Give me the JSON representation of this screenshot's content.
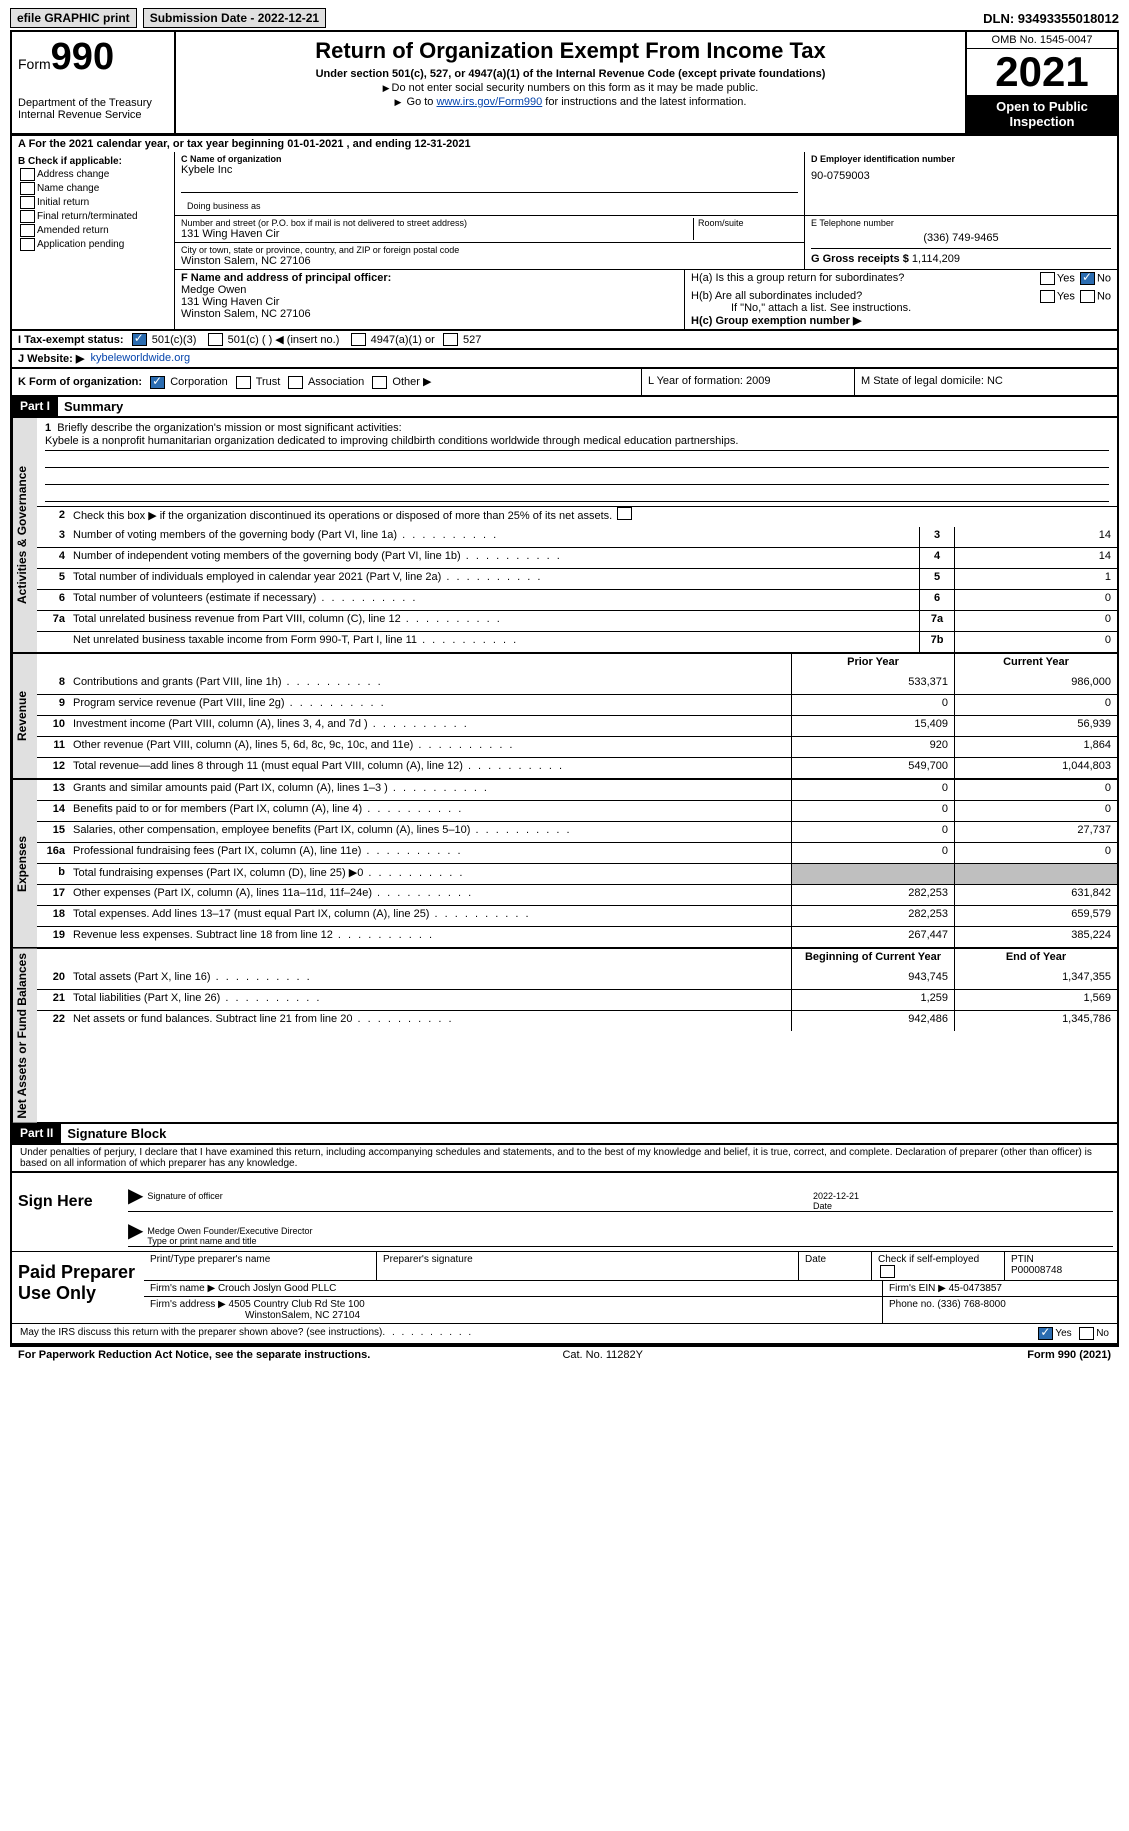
{
  "topbar": {
    "efile": "efile GRAPHIC print",
    "submission": "Submission Date - 2022-12-21",
    "dln": "DLN: 93493355018012"
  },
  "header": {
    "form_label": "Form",
    "form_num": "990",
    "title": "Return of Organization Exempt From Income Tax",
    "subtitle": "Under section 501(c), 527, or 4947(a)(1) of the Internal Revenue Code (except private foundations)",
    "note1": "Do not enter social security numbers on this form as it may be made public.",
    "note2_pre": "Go to ",
    "note2_link": "www.irs.gov/Form990",
    "note2_post": " for instructions and the latest information.",
    "dept": "Department of the Treasury",
    "irs": "Internal Revenue Service",
    "omb": "OMB No. 1545-0047",
    "year": "2021",
    "open": "Open to Public Inspection"
  },
  "line_a": "A For the 2021 calendar year, or tax year beginning 01-01-2021    , and ending 12-31-2021",
  "section_b": {
    "label": "B Check if applicable:",
    "opts": [
      "Address change",
      "Name change",
      "Initial return",
      "Final return/terminated",
      "Amended return",
      "Application pending"
    ],
    "c_label": "C Name of organization",
    "org_name": "Kybele Inc",
    "dba_label": "Doing business as",
    "street_label": "Number and street (or P.O. box if mail is not delivered to street address)",
    "street": "131 Wing Haven Cir",
    "room_label": "Room/suite",
    "city_label": "City or town, state or province, country, and ZIP or foreign postal code",
    "city": "Winston Salem, NC  27106",
    "d_label": "D Employer identification number",
    "ein": "90-0759003",
    "e_label": "E Telephone number",
    "phone": "(336) 749-9465",
    "g_label": "G Gross receipts $",
    "gross": "1,114,209",
    "f_label": "F  Name and address of principal officer:",
    "officer_name": "Medge Owen",
    "officer_addr1": "131 Wing Haven Cir",
    "officer_addr2": "Winston Salem, NC  27106",
    "h_a": "H(a)  Is this a group return for subordinates?",
    "h_b": "H(b)  Are all subordinates included?",
    "h_b_note": "If \"No,\" attach a list. See instructions.",
    "h_c": "H(c)  Group exemption number ▶",
    "yes": "Yes",
    "no": "No"
  },
  "tax_exempt": {
    "label": "I   Tax-exempt status:",
    "opt1": "501(c)(3)",
    "opt2": "501(c) (  ) ◀ (insert no.)",
    "opt3": "4947(a)(1) or",
    "opt4": "527"
  },
  "website": {
    "label": "J  Website: ▶",
    "url": "kybeleworldwide.org"
  },
  "k_row": {
    "label": "K Form of organization:",
    "corp": "Corporation",
    "trust": "Trust",
    "assoc": "Association",
    "other": "Other ▶",
    "l": "L Year of formation: 2009",
    "m": "M State of legal domicile: NC"
  },
  "part1": {
    "header": "Part I",
    "title": "Summary",
    "vert1": "Activities & Governance",
    "vert2": "Revenue",
    "vert3": "Expenses",
    "vert4": "Net Assets or Fund Balances",
    "line1_label": "Briefly describe the organization's mission or most significant activities:",
    "mission": "Kybele is a nonprofit humanitarian organization dedicated to improving childbirth conditions worldwide through medical education partnerships.",
    "line2": "Check this box ▶      if the organization discontinued its operations or disposed of more than 25% of its net assets.",
    "lines_gov": [
      {
        "n": "3",
        "t": "Number of voting members of the governing body (Part VI, line 1a)",
        "b": "3",
        "v": "14"
      },
      {
        "n": "4",
        "t": "Number of independent voting members of the governing body (Part VI, line 1b)",
        "b": "4",
        "v": "14"
      },
      {
        "n": "5",
        "t": "Total number of individuals employed in calendar year 2021 (Part V, line 2a)",
        "b": "5",
        "v": "1"
      },
      {
        "n": "6",
        "t": "Total number of volunteers (estimate if necessary)",
        "b": "6",
        "v": "0"
      },
      {
        "n": "7a",
        "t": "Total unrelated business revenue from Part VIII, column (C), line 12",
        "b": "7a",
        "v": "0"
      },
      {
        "n": "",
        "t": "Net unrelated business taxable income from Form 990-T, Part I, line 11",
        "b": "7b",
        "v": "0"
      }
    ],
    "col_prior": "Prior Year",
    "col_current": "Current Year",
    "lines_rev": [
      {
        "n": "8",
        "t": "Contributions and grants (Part VIII, line 1h)",
        "p": "533,371",
        "c": "986,000"
      },
      {
        "n": "9",
        "t": "Program service revenue (Part VIII, line 2g)",
        "p": "0",
        "c": "0"
      },
      {
        "n": "10",
        "t": "Investment income (Part VIII, column (A), lines 3, 4, and 7d )",
        "p": "15,409",
        "c": "56,939"
      },
      {
        "n": "11",
        "t": "Other revenue (Part VIII, column (A), lines 5, 6d, 8c, 9c, 10c, and 11e)",
        "p": "920",
        "c": "1,864"
      },
      {
        "n": "12",
        "t": "Total revenue—add lines 8 through 11 (must equal Part VIII, column (A), line 12)",
        "p": "549,700",
        "c": "1,044,803"
      }
    ],
    "lines_exp": [
      {
        "n": "13",
        "t": "Grants and similar amounts paid (Part IX, column (A), lines 1–3 )",
        "p": "0",
        "c": "0"
      },
      {
        "n": "14",
        "t": "Benefits paid to or for members (Part IX, column (A), line 4)",
        "p": "0",
        "c": "0"
      },
      {
        "n": "15",
        "t": "Salaries, other compensation, employee benefits (Part IX, column (A), lines 5–10)",
        "p": "0",
        "c": "27,737"
      },
      {
        "n": "16a",
        "t": "Professional fundraising fees (Part IX, column (A), line 11e)",
        "p": "0",
        "c": "0"
      },
      {
        "n": "b",
        "t": "Total fundraising expenses (Part IX, column (D), line 25) ▶0",
        "p": "grey",
        "c": "grey"
      },
      {
        "n": "17",
        "t": "Other expenses (Part IX, column (A), lines 11a–11d, 11f–24e)",
        "p": "282,253",
        "c": "631,842"
      },
      {
        "n": "18",
        "t": "Total expenses. Add lines 13–17 (must equal Part IX, column (A), line 25)",
        "p": "282,253",
        "c": "659,579"
      },
      {
        "n": "19",
        "t": "Revenue less expenses. Subtract line 18 from line 12",
        "p": "267,447",
        "c": "385,224"
      }
    ],
    "col_begin": "Beginning of Current Year",
    "col_end": "End of Year",
    "lines_net": [
      {
        "n": "20",
        "t": "Total assets (Part X, line 16)",
        "p": "943,745",
        "c": "1,347,355"
      },
      {
        "n": "21",
        "t": "Total liabilities (Part X, line 26)",
        "p": "1,259",
        "c": "1,569"
      },
      {
        "n": "22",
        "t": "Net assets or fund balances. Subtract line 21 from line 20",
        "p": "942,486",
        "c": "1,345,786"
      }
    ]
  },
  "part2": {
    "header": "Part II",
    "title": "Signature Block",
    "penalty": "Under penalties of perjury, I declare that I have examined this return, including accompanying schedules and statements, and to the best of my knowledge and belief, it is true, correct, and complete. Declaration of preparer (other than officer) is based on all information of which preparer has any knowledge.",
    "sign_here": "Sign Here",
    "sig_officer": "Signature of officer",
    "sig_date_val": "2022-12-21",
    "sig_date": "Date",
    "printed_name": "Medge Owen  Founder/Executive Director",
    "printed_label": "Type or print name and title",
    "paid": "Paid Preparer Use Only",
    "prep_name_label": "Print/Type preparer's name",
    "prep_sig_label": "Preparer's signature",
    "prep_date_label": "Date",
    "prep_check": "Check        if self-employed",
    "ptin_label": "PTIN",
    "ptin": "P00008748",
    "firm_name_label": "Firm's name     ▶",
    "firm_name": "Crouch Joslyn Good PLLC",
    "firm_ein_label": "Firm's EIN ▶",
    "firm_ein": "45-0473857",
    "firm_addr_label": "Firm's address ▶",
    "firm_addr1": "4505 Country Club Rd Ste 100",
    "firm_addr2": "WinstonSalem, NC  27104",
    "phone_label": "Phone no.",
    "phone": "(336) 768-8000",
    "discuss": "May the IRS discuss this return with the preparer shown above? (see instructions)"
  },
  "footer": {
    "left": "For Paperwork Reduction Act Notice, see the separate instructions.",
    "mid": "Cat. No. 11282Y",
    "right": "Form 990 (2021)"
  }
}
